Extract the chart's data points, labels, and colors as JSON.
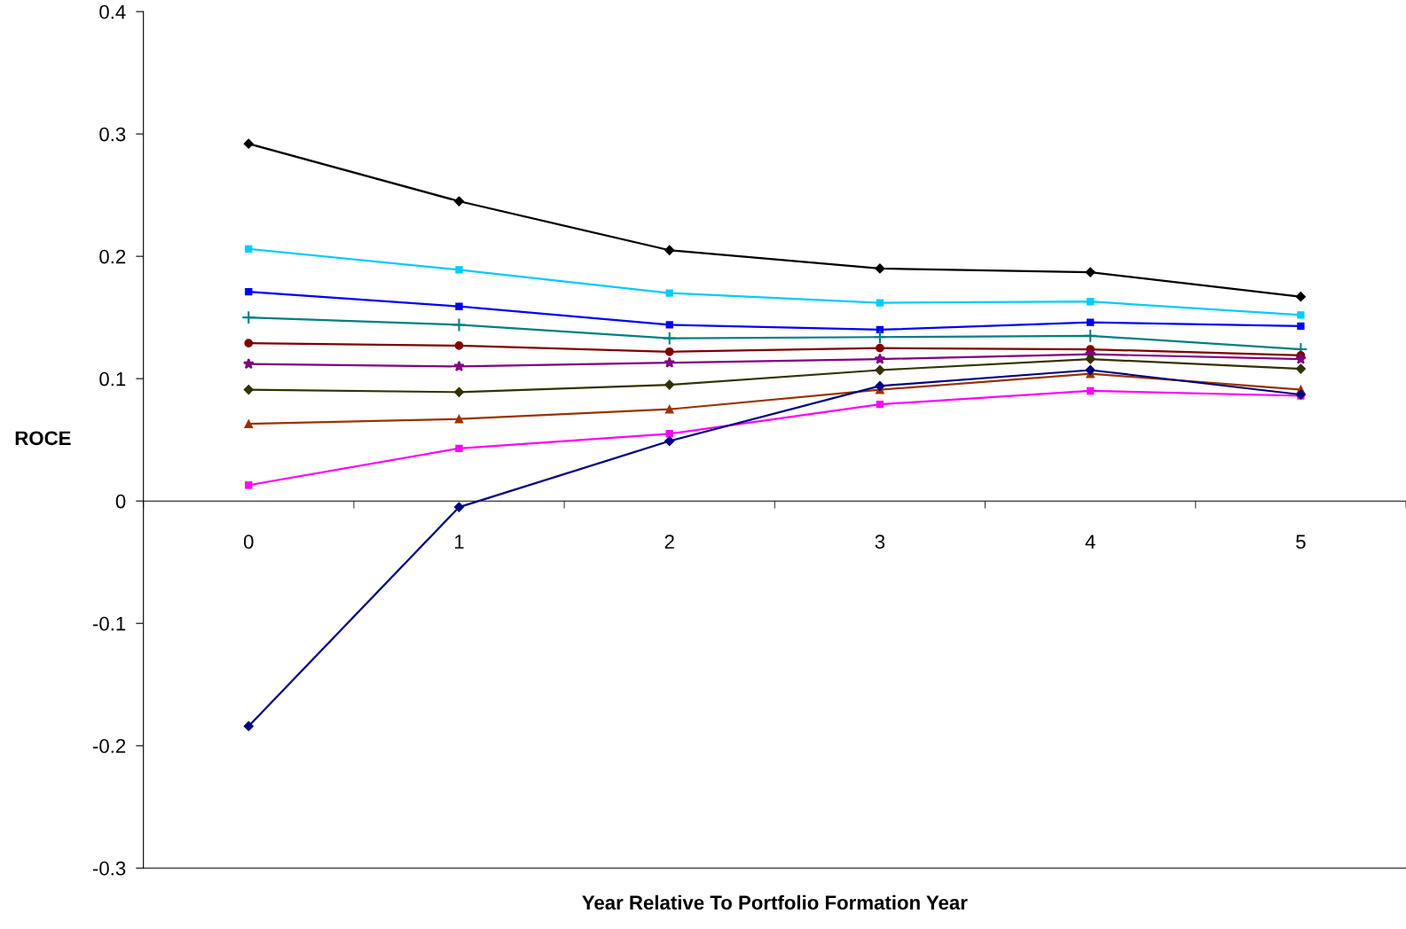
{
  "chart_data": {
    "type": "line",
    "xlabel": "Year Relative To Portfolio Formation Year",
    "ylabel": "ROCE",
    "categories": [
      "0",
      "1",
      "2",
      "3",
      "4",
      "5"
    ],
    "ylim": [
      -0.3,
      0.4
    ],
    "yticks": [
      {
        "value": -0.3,
        "label": "-0.3"
      },
      {
        "value": -0.2,
        "label": "-0.2"
      },
      {
        "value": -0.1,
        "label": "-0.1"
      },
      0,
      0.1,
      0.2,
      0.3,
      0.4
    ],
    "grid": false,
    "line_style": "solid",
    "series": [
      {
        "color": "#000000",
        "marker": "diamond",
        "values": [
          0.292,
          0.245,
          0.205,
          0.19,
          0.187,
          0.167
        ]
      },
      {
        "color": "#00ccff",
        "marker": "square",
        "values": [
          0.206,
          0.189,
          0.17,
          0.162,
          0.163,
          0.152
        ]
      },
      {
        "color": "#0000ff",
        "marker": "square",
        "values": [
          0.171,
          0.159,
          0.144,
          0.14,
          0.146,
          0.143
        ]
      },
      {
        "color": "#008080",
        "marker": "cross",
        "values": [
          0.15,
          0.144,
          0.133,
          0.134,
          0.135,
          0.124
        ]
      },
      {
        "color": "#800000",
        "marker": "circle",
        "values": [
          0.129,
          0.127,
          0.122,
          0.125,
          0.124,
          0.119
        ]
      },
      {
        "color": "#800080",
        "marker": "star",
        "values": [
          0.112,
          0.11,
          0.113,
          0.116,
          0.12,
          0.116
        ]
      },
      {
        "color": "#333300",
        "marker": "diamond",
        "values": [
          0.091,
          0.089,
          0.095,
          0.107,
          0.116,
          0.108
        ]
      },
      {
        "color": "#993300",
        "marker": "triangle",
        "values": [
          0.063,
          0.067,
          0.075,
          0.091,
          0.104,
          0.091
        ]
      },
      {
        "color": "#ff00ff",
        "marker": "square",
        "values": [
          0.013,
          0.043,
          0.055,
          0.079,
          0.09,
          0.086
        ]
      },
      {
        "color": "#000080",
        "marker": "diamond",
        "values": [
          -0.184,
          -0.005,
          0.049,
          0.094,
          0.107,
          0.087
        ]
      }
    ]
  }
}
